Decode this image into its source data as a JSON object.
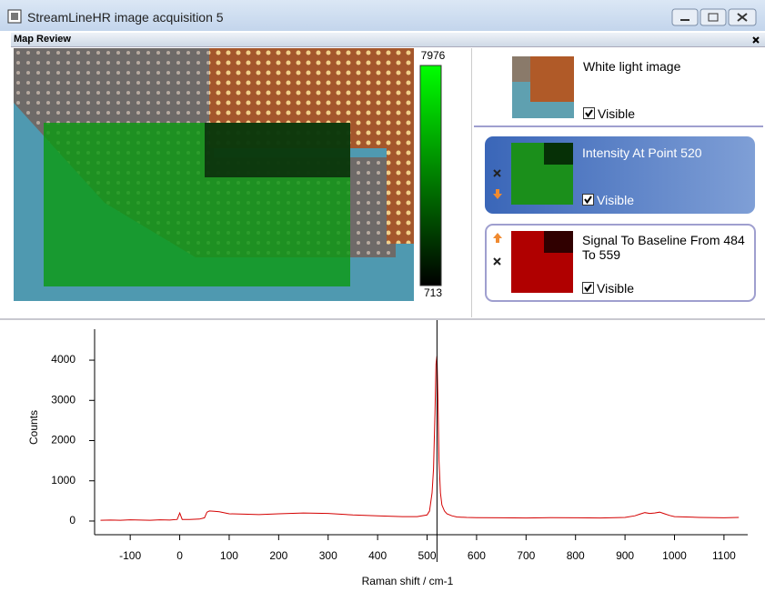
{
  "window": {
    "title": "StreamLineHR image acquisition 5"
  },
  "panel": {
    "title": "Map Review"
  },
  "colorbar": {
    "max": 7976,
    "min": 713
  },
  "layers": [
    {
      "label": "White light image",
      "visible": "Visible"
    },
    {
      "label": "Intensity At Point 520",
      "visible": "Visible"
    },
    {
      "label": "Signal To Baseline From 484 To 559",
      "visible": "Visible"
    }
  ],
  "chart_data": {
    "type": "line",
    "xlabel": "Raman shift / cm-1",
    "ylabel": "Counts",
    "color": "#d40000",
    "x": [
      -160,
      -140,
      -120,
      -100,
      -80,
      -60,
      -40,
      -20,
      -5,
      0,
      5,
      20,
      40,
      50,
      55,
      60,
      70,
      80,
      100,
      130,
      160,
      200,
      250,
      300,
      350,
      400,
      450,
      480,
      500,
      505,
      510,
      513,
      516,
      518,
      520,
      522,
      524,
      527,
      530,
      535,
      540,
      550,
      560,
      580,
      600,
      650,
      700,
      750,
      800,
      850,
      900,
      920,
      930,
      940,
      950,
      960,
      970,
      980,
      990,
      1000,
      1050,
      1100,
      1130
    ],
    "values": [
      20,
      25,
      20,
      30,
      25,
      20,
      30,
      25,
      40,
      200,
      40,
      40,
      50,
      80,
      220,
      250,
      240,
      230,
      180,
      170,
      160,
      180,
      200,
      190,
      150,
      130,
      110,
      110,
      150,
      250,
      700,
      1300,
      2700,
      3900,
      4100,
      3000,
      1500,
      700,
      400,
      250,
      180,
      130,
      100,
      90,
      85,
      80,
      75,
      85,
      80,
      75,
      90,
      130,
      170,
      210,
      190,
      200,
      220,
      180,
      140,
      110,
      90,
      80,
      90
    ],
    "cursor_x": 520,
    "xlim": [
      -172,
      1148
    ],
    "xticks": [
      -100,
      0,
      100,
      200,
      300,
      400,
      500,
      600,
      700,
      800,
      900,
      1000,
      1100
    ],
    "ylim": [
      -340,
      4770
    ],
    "yticks": [
      0,
      1000,
      2000,
      3000,
      4000
    ]
  }
}
